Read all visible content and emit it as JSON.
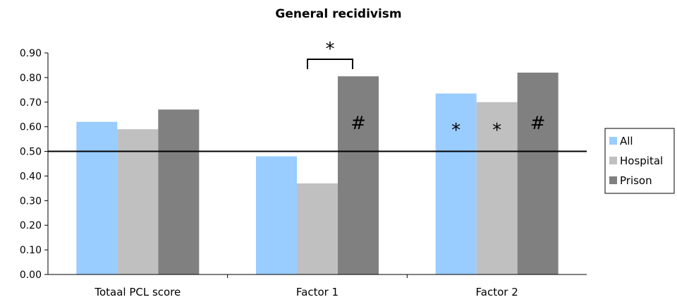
{
  "chart_data": {
    "type": "bar",
    "title": "General recidivism",
    "categories": [
      "Totaal PCL score",
      "Factor 1",
      "Factor 2"
    ],
    "series": [
      {
        "name": "All",
        "values": [
          0.62,
          0.48,
          0.735
        ]
      },
      {
        "name": "Hospital",
        "values": [
          0.59,
          0.37,
          0.7
        ]
      },
      {
        "name": "Prison",
        "values": [
          0.67,
          0.805,
          0.82
        ]
      }
    ],
    "ylim": [
      0.0,
      0.9
    ],
    "yticks": [
      "0.00",
      "0.10",
      "0.20",
      "0.30",
      "0.40",
      "0.50",
      "0.60",
      "0.70",
      "0.80",
      "0.90"
    ],
    "reference_line": 0.5,
    "legend_placement": "right",
    "grid": false,
    "colors": {
      "All": "#99ccff",
      "Hospital": "#c0c0c0",
      "Prison": "#808080"
    },
    "annotations": [
      {
        "category": "Factor 1",
        "series": "Prison",
        "text": "#"
      },
      {
        "category": "Factor 2",
        "series": "All",
        "text": "*"
      },
      {
        "category": "Factor 2",
        "series": "Hospital",
        "text": "*"
      },
      {
        "category": "Factor 2",
        "series": "Prison",
        "text": "#"
      }
    ],
    "bracket": {
      "category": "Factor 1",
      "from_series": "Hospital",
      "to_series": "Prison",
      "text": "*"
    }
  }
}
